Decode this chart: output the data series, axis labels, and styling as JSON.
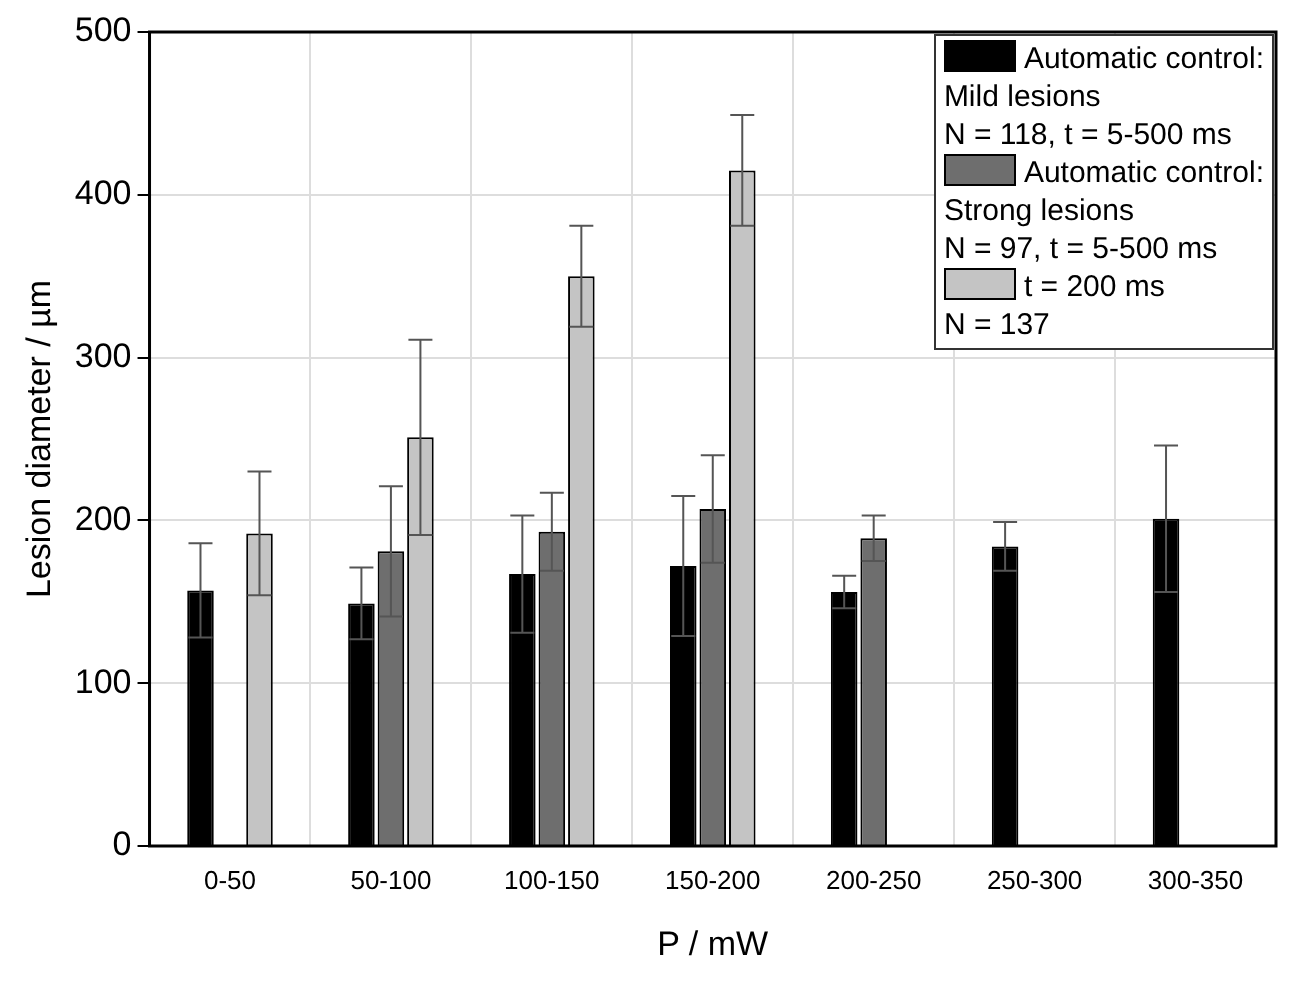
{
  "chart_data": {
    "type": "bar",
    "xlabel": "P / mW",
    "ylabel": "Lesion diameter / µm",
    "categories": [
      "0-50",
      "50-100",
      "100-150",
      "150-200",
      "200-250",
      "250-300",
      "300-350"
    ],
    "series": [
      {
        "name": "Automatic control:\nMild lesions\nN = 118, t = 5-500 ms",
        "color": "#000000",
        "values": [
          157,
          149,
          167,
          172,
          156,
          184,
          201
        ],
        "errors": [
          29,
          22,
          36,
          43,
          10,
          15,
          45
        ]
      },
      {
        "name": "Automatic control:\nStrong lesions\nN = 97, t = 5-500 ms",
        "color": "#6e6e6e",
        "values": [
          null,
          181,
          193,
          207,
          189,
          null,
          null
        ],
        "errors": [
          null,
          40,
          24,
          33,
          14,
          null,
          null
        ]
      },
      {
        "name": "t = 200 ms\nN = 137",
        "color": "#c4c4c4",
        "values": [
          192,
          251,
          350,
          415,
          null,
          null,
          null
        ],
        "errors": [
          38,
          60,
          31,
          34,
          null,
          null,
          null
        ]
      }
    ],
    "ylim": [
      0,
      500
    ],
    "yticks": [
      0,
      100,
      200,
      300,
      400,
      500
    ],
    "grid": true,
    "legend": "top right"
  }
}
